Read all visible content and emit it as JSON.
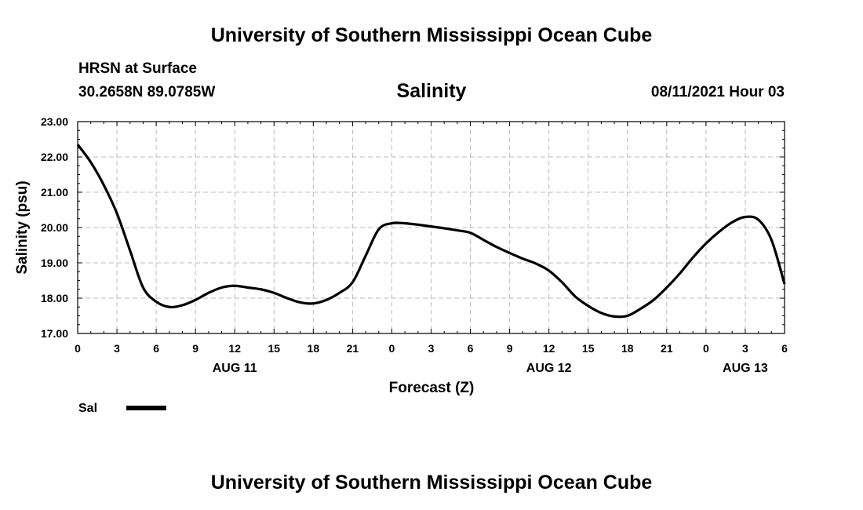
{
  "header": {
    "title": "University of Southern Mississippi Ocean Cube",
    "station": "HRSN at Surface",
    "coords": "30.2658N  89.0785W",
    "datetime": "08/11/2021 Hour 03",
    "footer_title": "University of Southern Mississippi Ocean Cube"
  },
  "chart_data": {
    "type": "line",
    "title": "Salinity",
    "xlabel": "Forecast (Z)",
    "ylabel": "Salinity (psu)",
    "ylim": [
      17.0,
      23.0
    ],
    "xlim": [
      0,
      54
    ],
    "y_ticks": [
      "17.00",
      "18.00",
      "19.00",
      "20.00",
      "21.00",
      "22.00",
      "23.00"
    ],
    "y_tick_values": [
      17,
      18,
      19,
      20,
      21,
      22,
      23
    ],
    "x_tick_labels": [
      "0",
      "3",
      "6",
      "9",
      "12",
      "15",
      "18",
      "21",
      "0",
      "3",
      "6",
      "9",
      "12",
      "15",
      "18",
      "21",
      "0",
      "3",
      "6"
    ],
    "x_tick_hours": [
      0,
      3,
      6,
      9,
      12,
      15,
      18,
      21,
      24,
      27,
      30,
      33,
      36,
      39,
      42,
      45,
      48,
      51,
      54
    ],
    "day_labels": [
      {
        "label": "AUG 11",
        "hour": 12
      },
      {
        "label": "AUG 12",
        "hour": 36
      },
      {
        "label": "AUG 13",
        "hour": 51
      }
    ],
    "grid": true,
    "legend_position": "bottom-left",
    "series": [
      {
        "name": "Sal",
        "color": "#000000",
        "hours": [
          0,
          1,
          2,
          3,
          4,
          5,
          6,
          7,
          8,
          9,
          10,
          11,
          12,
          13,
          14,
          15,
          16,
          17,
          18,
          19,
          20,
          21,
          22,
          23,
          24,
          25,
          26,
          27,
          28,
          29,
          30,
          31,
          32,
          33,
          34,
          35,
          36,
          37,
          38,
          39,
          40,
          41,
          42,
          43,
          44,
          45,
          46,
          47,
          48,
          49,
          50,
          51,
          52,
          53,
          54
        ],
        "values": [
          22.35,
          21.85,
          21.2,
          20.4,
          19.35,
          18.3,
          17.9,
          17.75,
          17.8,
          17.95,
          18.15,
          18.3,
          18.35,
          18.3,
          18.25,
          18.15,
          18.0,
          17.88,
          17.85,
          17.95,
          18.15,
          18.45,
          19.2,
          19.95,
          20.12,
          20.12,
          20.08,
          20.03,
          19.98,
          19.92,
          19.85,
          19.65,
          19.45,
          19.28,
          19.12,
          18.98,
          18.78,
          18.45,
          18.05,
          17.78,
          17.58,
          17.48,
          17.5,
          17.7,
          17.95,
          18.3,
          18.7,
          19.15,
          19.55,
          19.88,
          20.15,
          20.3,
          20.22,
          19.65,
          18.4
        ]
      }
    ]
  }
}
